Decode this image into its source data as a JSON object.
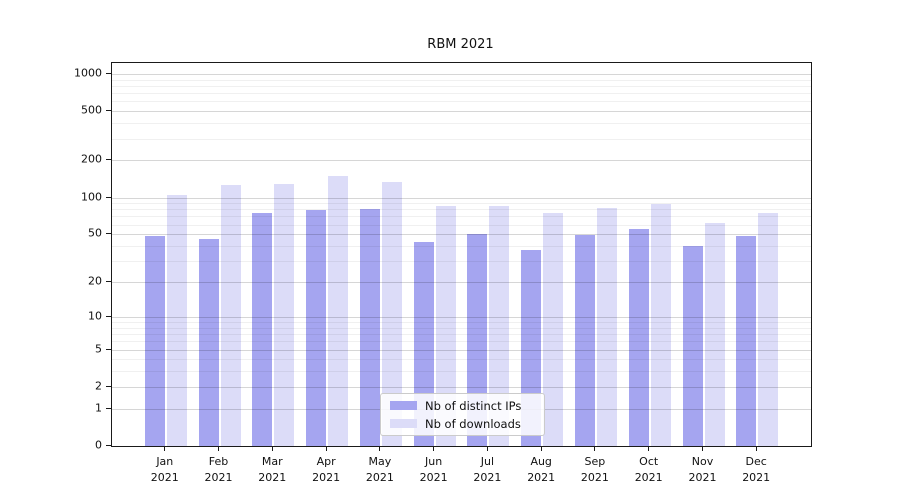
{
  "title": "RBM 2021",
  "chart_data": {
    "type": "bar",
    "title": "RBM 2021",
    "categories": [
      "Jan 2021",
      "Feb 2021",
      "Mar 2021",
      "Apr 2021",
      "May 2021",
      "Jun 2021",
      "Jul 2021",
      "Aug 2021",
      "Sep 2021",
      "Oct 2021",
      "Nov 2021",
      "Dec 2021"
    ],
    "month_labels": [
      "Jan",
      "Feb",
      "Mar",
      "Apr",
      "May",
      "Jun",
      "Jul",
      "Aug",
      "Sep",
      "Oct",
      "Nov",
      "Dec"
    ],
    "year_label": "2021",
    "series": [
      {
        "name": "Nb of distinct IPs",
        "color": "#a5a5f0",
        "values": [
          48,
          46,
          75,
          79,
          81,
          43,
          50,
          37,
          49,
          55,
          40,
          48
        ]
      },
      {
        "name": "Nb of downloads",
        "color": "#dcdcf8",
        "values": [
          104,
          126,
          130,
          150,
          133,
          86,
          86,
          75,
          82,
          88,
          62,
          75
        ]
      }
    ],
    "y_scale": "log10(value+1)",
    "y_ticks": [
      0,
      1,
      2,
      5,
      10,
      20,
      50,
      100,
      200,
      500,
      1000
    ],
    "y_tick_labels": [
      "0",
      "1",
      "2",
      "5",
      "10",
      "20",
      "50",
      "100",
      "200",
      "500",
      "1000"
    ],
    "y_minor_ticks": [
      3,
      4,
      6,
      7,
      8,
      9,
      30,
      40,
      60,
      70,
      80,
      90,
      300,
      400,
      600,
      700,
      800,
      900
    ],
    "ylim": [
      0,
      1150
    ],
    "xlabel": "",
    "ylabel": "",
    "grid": true,
    "legend": {
      "position": "lower center",
      "entries": [
        "Nb of distinct IPs",
        "Nb of downloads"
      ]
    }
  },
  "colors": {
    "background": "#ffffff",
    "ips_bar": "#a5a5f0",
    "downloads_bar": "#dcdcf8",
    "major_grid": "#d2d2d2",
    "minor_grid": "#ededed",
    "axis": "#1a1a1a",
    "text": "#111111",
    "legend_border": "#cbcbcb"
  }
}
